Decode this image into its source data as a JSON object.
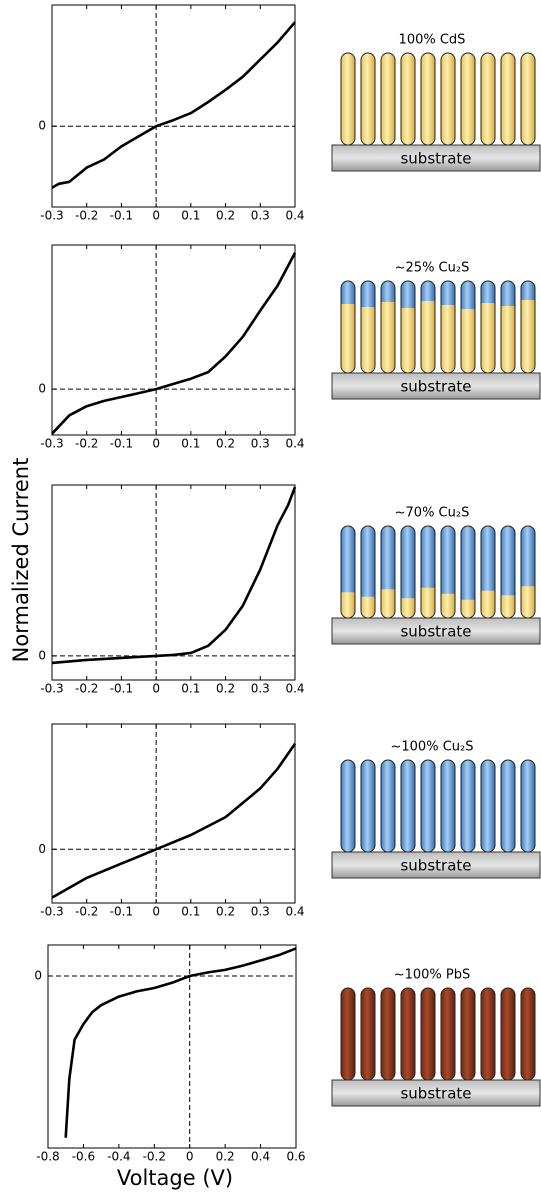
{
  "chart_data": [
    {
      "type": "line",
      "x": [
        -0.3,
        -0.28,
        -0.25,
        -0.2,
        -0.15,
        -0.1,
        -0.05,
        0,
        0.05,
        0.1,
        0.15,
        0.2,
        0.25,
        0.3,
        0.35,
        0.4
      ],
      "values": [
        -0.61,
        -0.57,
        -0.55,
        -0.41,
        -0.33,
        -0.2,
        -0.1,
        0,
        0.06,
        0.13,
        0.24,
        0.36,
        0.49,
        0.66,
        0.83,
        1.03
      ],
      "color": "#000000",
      "xlim": [
        -0.3,
        0.4
      ],
      "ylim": [
        -0.8,
        1.2
      ],
      "xticks": [
        -0.3,
        -0.2,
        -0.1,
        0,
        0.1,
        0.2,
        0.3,
        0.4
      ],
      "yticks": [
        0
      ]
    },
    {
      "type": "line",
      "x": [
        -0.3,
        -0.25,
        -0.2,
        -0.15,
        -0.1,
        -0.05,
        0,
        0.05,
        0.1,
        0.15,
        0.2,
        0.25,
        0.3,
        0.35,
        0.4
      ],
      "values": [
        -0.34,
        -0.2,
        -0.13,
        -0.09,
        -0.06,
        -0.03,
        0,
        0.04,
        0.08,
        0.13,
        0.25,
        0.4,
        0.6,
        0.79,
        1.04
      ],
      "color": "#000000",
      "xlim": [
        -0.3,
        0.4
      ],
      "ylim": [
        -0.35,
        1.1
      ],
      "xticks": [
        -0.3,
        -0.2,
        -0.1,
        0,
        0.1,
        0.2,
        0.3,
        0.4
      ],
      "yticks": [
        0
      ]
    },
    {
      "type": "line",
      "x": [
        -0.3,
        -0.2,
        -0.1,
        0,
        0.05,
        0.1,
        0.15,
        0.2,
        0.25,
        0.3,
        0.35,
        0.38,
        0.4
      ],
      "values": [
        -0.035,
        -0.02,
        -0.01,
        0,
        0.005,
        0.015,
        0.05,
        0.13,
        0.25,
        0.43,
        0.65,
        0.75,
        0.84
      ],
      "color": "#000000",
      "xlim": [
        -0.3,
        0.4
      ],
      "ylim": [
        -0.12,
        0.85
      ],
      "xticks": [
        -0.3,
        -0.2,
        -0.1,
        0,
        0.1,
        0.2,
        0.3,
        0.4
      ],
      "yticks": [
        0
      ]
    },
    {
      "type": "line",
      "x": [
        -0.3,
        -0.2,
        -0.1,
        0,
        0.1,
        0.2,
        0.3,
        0.35,
        0.4
      ],
      "values": [
        -0.27,
        -0.16,
        -0.08,
        0,
        0.08,
        0.18,
        0.34,
        0.45,
        0.59
      ],
      "color": "#000000",
      "xlim": [
        -0.3,
        0.4
      ],
      "ylim": [
        -0.3,
        0.7
      ],
      "xticks": [
        -0.3,
        -0.2,
        -0.1,
        0,
        0.1,
        0.2,
        0.3,
        0.4
      ],
      "yticks": [
        0
      ]
    },
    {
      "type": "line",
      "x": [
        -0.7,
        -0.68,
        -0.65,
        -0.6,
        -0.55,
        -0.5,
        -0.4,
        -0.3,
        -0.2,
        -0.1,
        0,
        0.1,
        0.2,
        0.3,
        0.4,
        0.5,
        0.6
      ],
      "values": [
        -0.94,
        -0.6,
        -0.37,
        -0.28,
        -0.21,
        -0.17,
        -0.12,
        -0.09,
        -0.07,
        -0.04,
        0,
        0.02,
        0.035,
        0.06,
        0.09,
        0.12,
        0.16
      ],
      "color": "#000000",
      "xlim": [
        -0.8,
        0.6
      ],
      "ylim": [
        -1,
        0.18
      ],
      "xticks": [
        -0.8,
        -0.6,
        -0.4,
        -0.2,
        0,
        0.2,
        0.4,
        0.6
      ],
      "yticks": [
        0
      ]
    }
  ],
  "figure": {
    "ylabel": "Normalized Current",
    "xlabel": "Voltage (V)"
  },
  "diagrams": [
    {
      "label": "100% CdS",
      "substrate": "substrate"
    },
    {
      "label": "~25% Cu₂S",
      "substrate": "substrate"
    },
    {
      "label": "~70% Cu₂S",
      "substrate": "substrate"
    },
    {
      "label": "~100% Cu₂S",
      "substrate": "substrate"
    },
    {
      "label": "~100% PbS",
      "substrate": "substrate"
    }
  ]
}
